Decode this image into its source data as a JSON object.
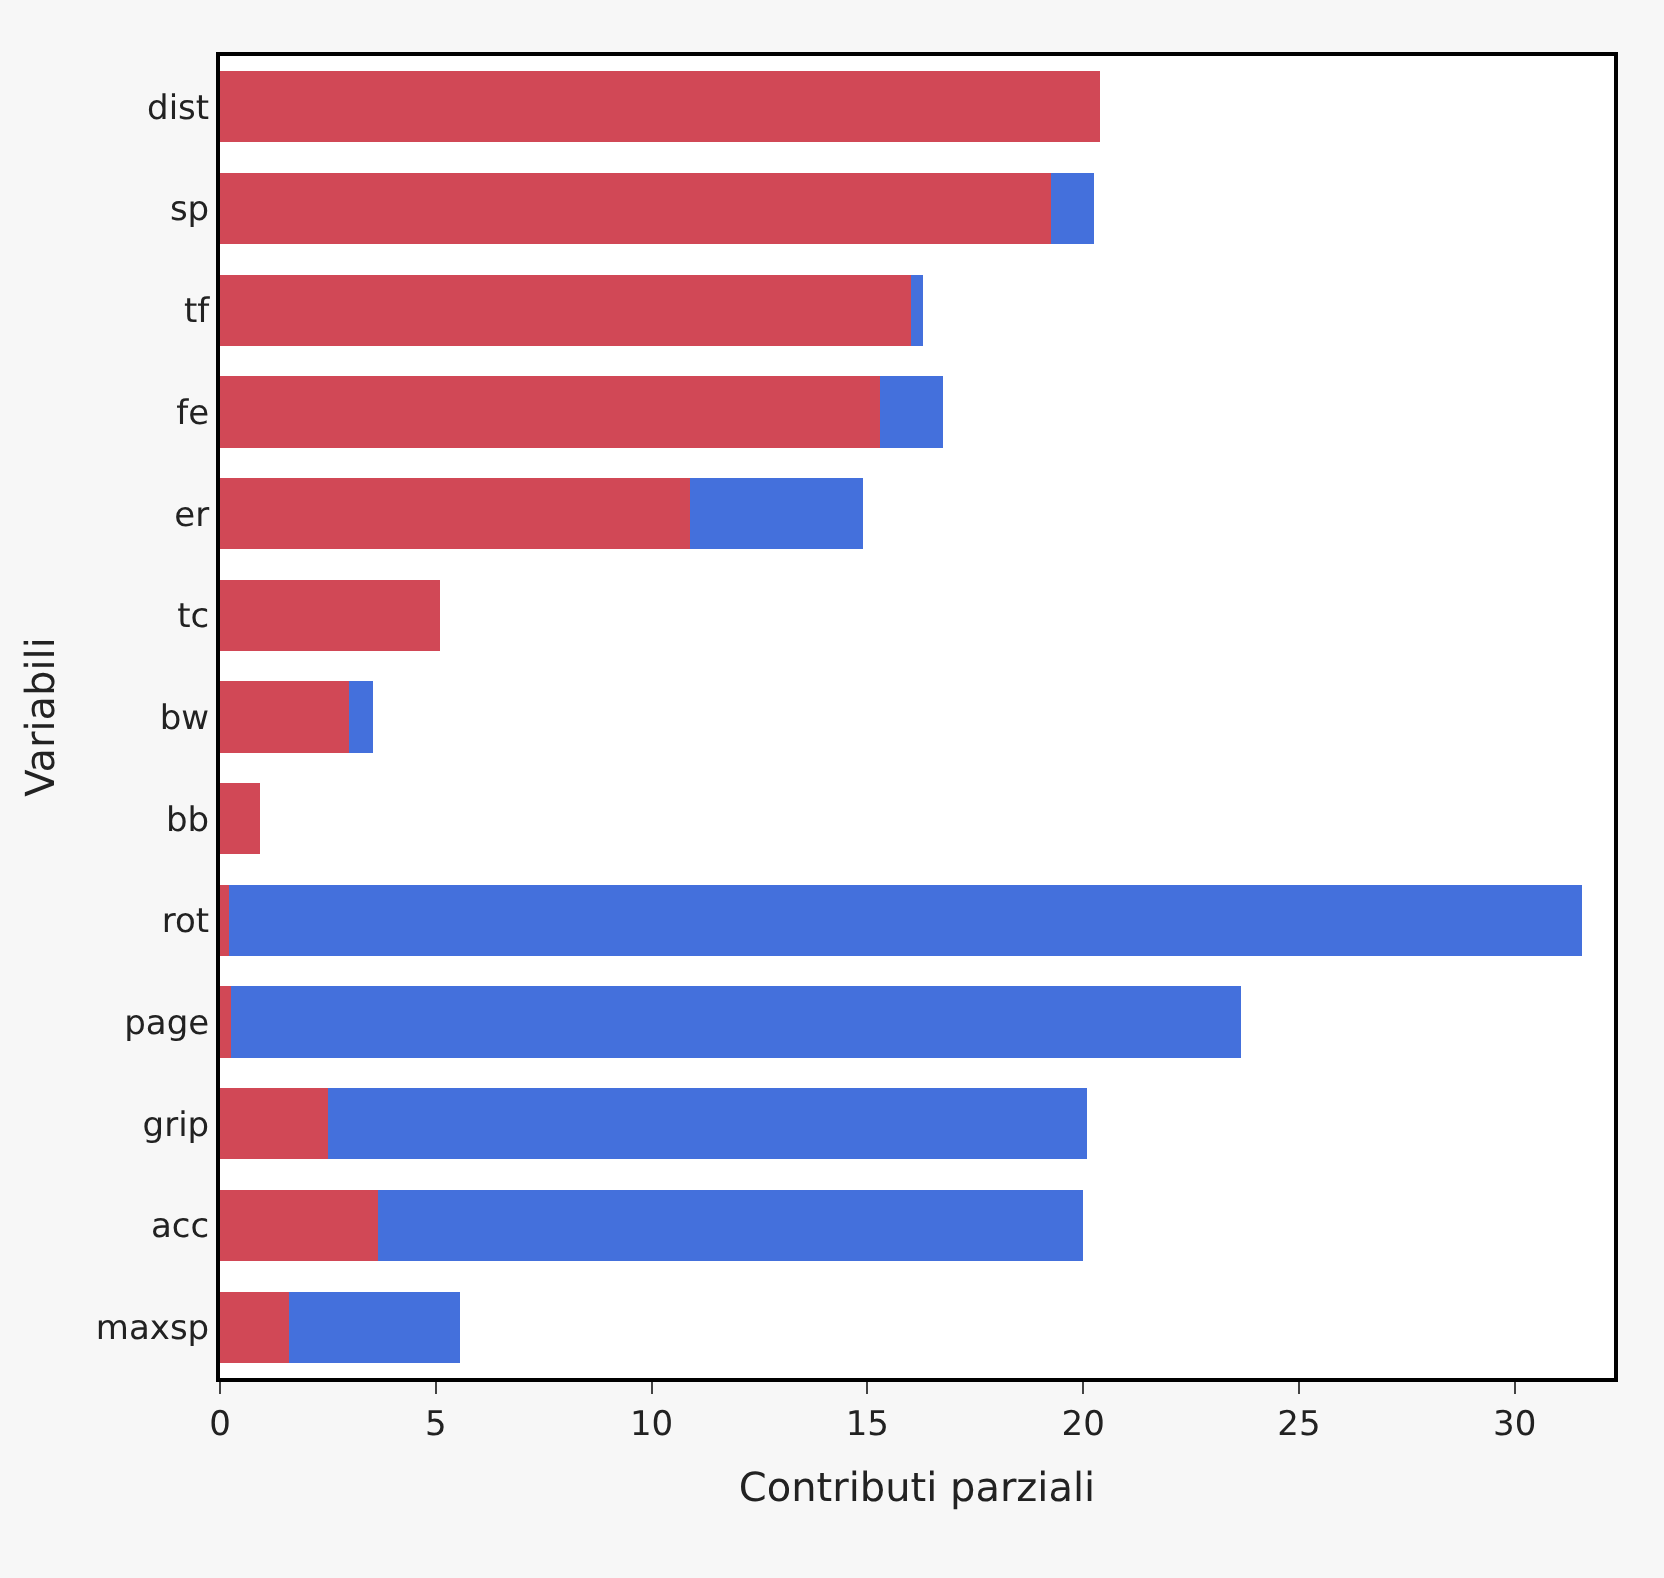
{
  "chart_data": {
    "type": "bar",
    "orientation": "horizontal",
    "stacked": true,
    "xlabel": "Contributi parziali",
    "ylabel": "Variabili",
    "categories": [
      "dist",
      "sp",
      "tf",
      "fe",
      "er",
      "tc",
      "bw",
      "bb",
      "rot",
      "page",
      "grip",
      "acc",
      "maxsp"
    ],
    "series": [
      {
        "color": "#d14856",
        "values": [
          20.4,
          19.25,
          16.0,
          15.3,
          10.9,
          5.1,
          3.0,
          0.93,
          0.2,
          0.25,
          2.5,
          3.65,
          1.6
        ]
      },
      {
        "color": "#4470dc",
        "values": [
          null,
          1.0,
          0.3,
          1.45,
          4.0,
          null,
          0.55,
          null,
          31.35,
          23.4,
          17.6,
          16.35,
          3.95
        ]
      }
    ],
    "xlim": [
      0,
      32.3
    ],
    "xticks": [
      0,
      5,
      10,
      15,
      20,
      25,
      30
    ]
  }
}
